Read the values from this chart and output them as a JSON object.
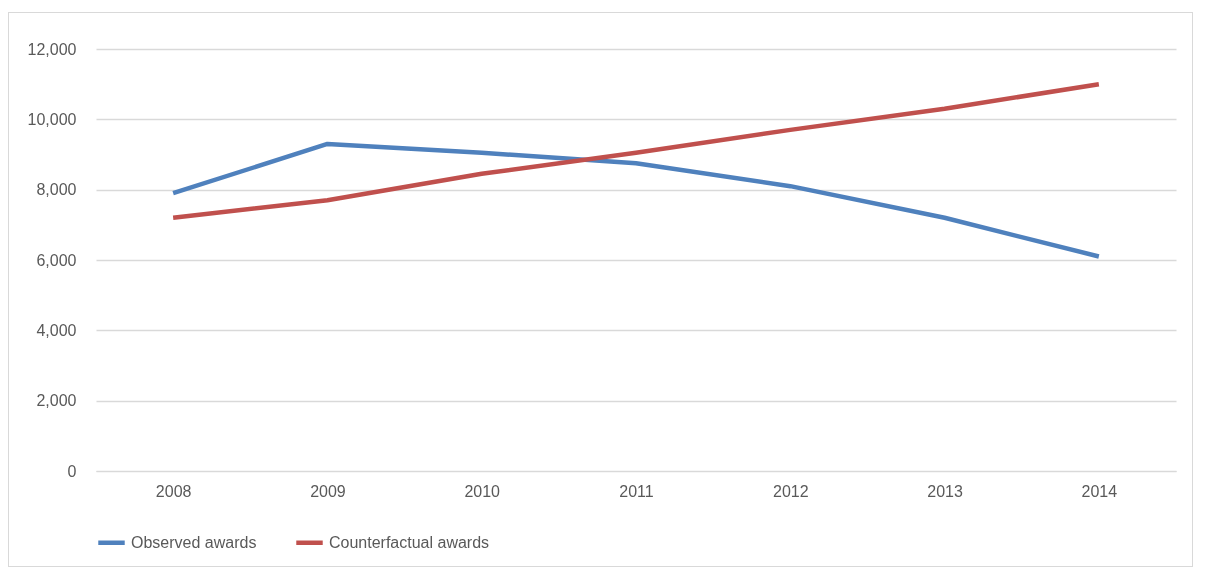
{
  "chart_data": {
    "type": "line",
    "categories": [
      "2008",
      "2009",
      "2010",
      "2011",
      "2012",
      "2013",
      "2014"
    ],
    "series": [
      {
        "name": "Observed awards",
        "color": "#4f81bd",
        "values": [
          7900,
          9300,
          9050,
          8750,
          8100,
          7200,
          6100
        ]
      },
      {
        "name": "Counterfactual awards",
        "color": "#c0504d",
        "values": [
          7200,
          7700,
          8450,
          9050,
          9700,
          10300,
          11000
        ]
      }
    ],
    "ylim": [
      0,
      12000
    ],
    "yticks": [
      {
        "value": 0,
        "label": "0"
      },
      {
        "value": 2000,
        "label": "2,000"
      },
      {
        "value": 4000,
        "label": "4,000"
      },
      {
        "value": 6000,
        "label": "6,000"
      },
      {
        "value": 8000,
        "label": "8,000"
      },
      {
        "value": 10000,
        "label": "10,000"
      },
      {
        "value": 12000,
        "label": "12,000"
      }
    ],
    "grid": "y",
    "legend": "bottom",
    "marker": "none",
    "line_style": "solid"
  }
}
